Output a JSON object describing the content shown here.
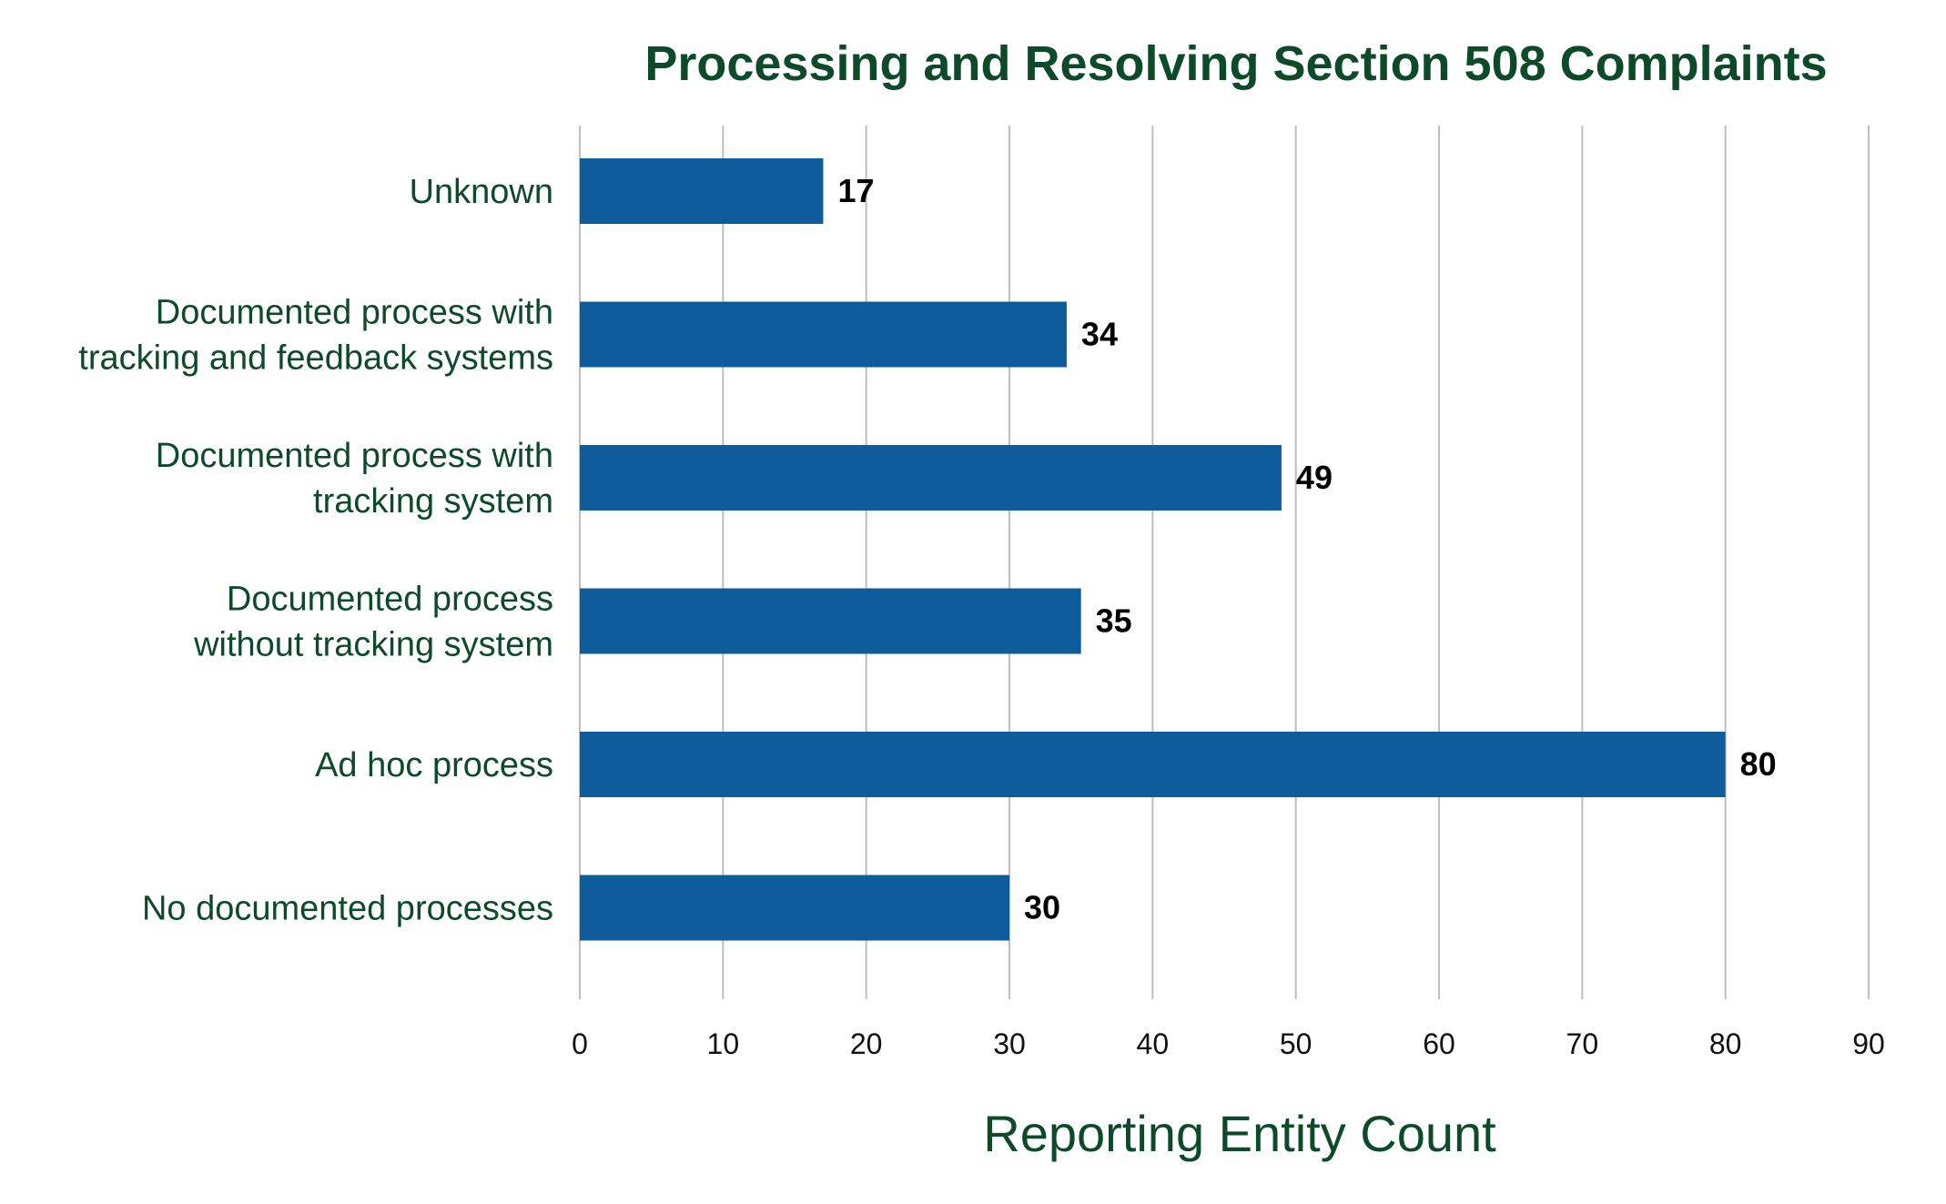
{
  "chart_data": {
    "type": "bar",
    "orientation": "horizontal",
    "title": "Processing and Resolving Section 508 Complaints",
    "xlabel": "Reporting Entity Count",
    "ylabel": "",
    "categories": [
      [
        "Unknown"
      ],
      [
        "Documented process with",
        "tracking and feedback systems"
      ],
      [
        "Documented process with",
        "tracking system"
      ],
      [
        "Documented process",
        "without tracking system"
      ],
      [
        "Ad hoc process"
      ],
      [
        "No documented processes"
      ]
    ],
    "values": [
      17,
      34,
      49,
      35,
      80,
      30
    ],
    "xlim": [
      0,
      90
    ],
    "xticks": [
      0,
      10,
      20,
      30,
      40,
      50,
      60,
      70,
      80,
      90
    ],
    "grid": "vertical",
    "legend": "none",
    "colors": {
      "bar": "#0f5c9c",
      "text": "#0d4a2a",
      "grid": "#bfbfbf",
      "value_label": "#000000"
    }
  }
}
